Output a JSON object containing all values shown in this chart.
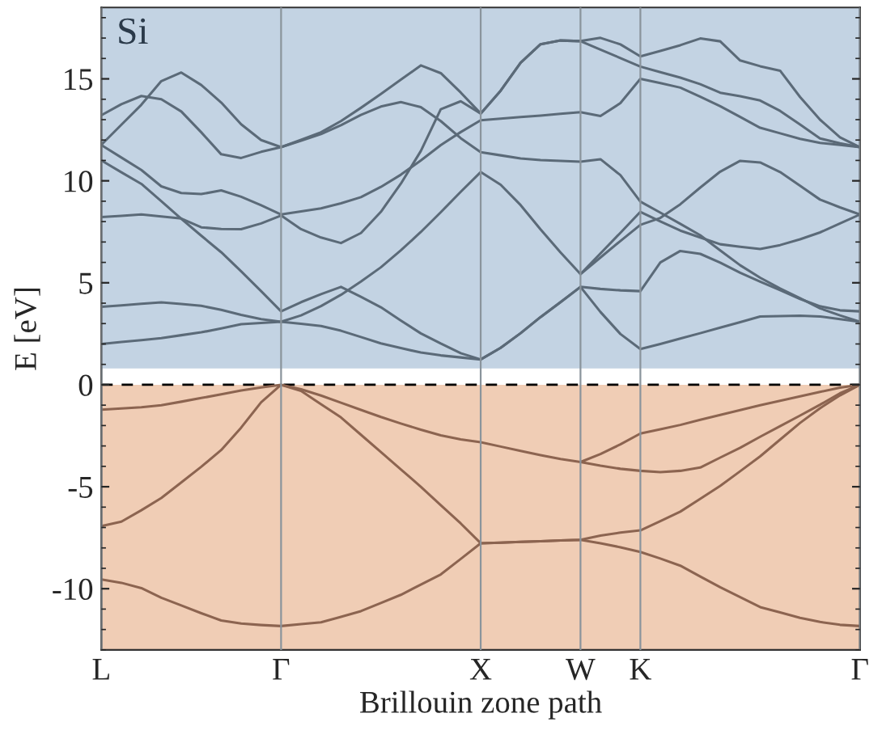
{
  "chart_data": {
    "type": "line",
    "xlabel": "Brillouin zone path",
    "ylabel": "E [eV]",
    "annotations": [
      "Si"
    ],
    "categories": [
      "L",
      null,
      null,
      null,
      null,
      null,
      null,
      null,
      null,
      "Γ",
      null,
      null,
      null,
      null,
      null,
      null,
      null,
      null,
      null,
      "X",
      null,
      null,
      null,
      null,
      "W",
      null,
      null,
      "K",
      null,
      null,
      null,
      null,
      null,
      null,
      null,
      null,
      null,
      null,
      "Γ"
    ],
    "ylim": [
      -13,
      18.5
    ],
    "yticks": [
      {
        "value": -10,
        "label": "-10"
      },
      {
        "value": -5,
        "label": "-5"
      },
      0,
      5,
      10,
      15
    ],
    "grid": "x",
    "legend": false,
    "marker": "none",
    "line_style": "solid",
    "bands": [
      {
        "axis": "y",
        "from": 0.8,
        "to": 18.5,
        "color": "#c3d3e3"
      },
      {
        "axis": "y",
        "from": -13,
        "to": 0,
        "color": "#f0cdb5"
      }
    ],
    "ref_lines": [
      {
        "axis": "y",
        "value": 0,
        "color": "#000000",
        "line_style": "dashed"
      }
    ],
    "series": [
      {
        "color": "#5b6a78",
        "values": [
          2.0,
          2.1,
          2.19,
          2.29,
          2.43,
          2.57,
          2.76,
          2.97,
          3.03,
          3.09,
          2.99,
          2.88,
          2.65,
          2.34,
          2.03,
          1.8,
          1.58,
          1.44,
          1.34,
          1.24,
          1.81,
          2.53,
          3.32,
          4.05,
          4.8,
          3.57,
          2.49,
          1.75,
          2.0,
          2.27,
          2.53,
          2.8,
          3.07,
          3.35,
          3.37,
          3.39,
          3.35,
          3.22,
          3.09
        ]
      },
      {
        "color": "#5b6a78",
        "values": [
          3.82,
          3.89,
          3.97,
          4.04,
          3.96,
          3.87,
          3.67,
          3.43,
          3.22,
          3.09,
          3.4,
          3.86,
          4.41,
          5.06,
          5.76,
          6.59,
          7.49,
          8.46,
          9.46,
          10.43,
          9.81,
          8.81,
          7.62,
          6.49,
          5.43,
          6.24,
          7.05,
          7.84,
          8.18,
          8.85,
          9.67,
          10.45,
          10.98,
          10.9,
          10.43,
          9.76,
          9.08,
          8.7,
          8.35
        ]
      },
      {
        "color": "#5b6a78",
        "values": [
          null,
          null,
          null,
          null,
          null,
          null,
          null,
          null,
          null,
          null,
          null,
          null,
          null,
          null,
          null,
          null,
          null,
          null,
          null,
          null,
          null,
          null,
          null,
          null,
          5.43,
          6.44,
          7.45,
          8.48,
          8.01,
          7.56,
          7.22,
          6.89,
          6.77,
          6.66,
          6.85,
          7.13,
          7.47,
          7.91,
          8.35
        ]
      },
      {
        "color": "#5b6a78",
        "values": [
          11.0,
          10.42,
          9.85,
          9.0,
          8.14,
          7.31,
          6.5,
          5.56,
          4.59,
          3.6,
          4.05,
          4.44,
          4.8,
          4.31,
          3.8,
          3.15,
          2.52,
          2.02,
          1.55,
          1.24,
          1.81,
          2.53,
          3.32,
          4.05,
          4.8,
          4.7,
          4.63,
          4.59,
          6.0,
          6.56,
          6.42,
          5.99,
          5.49,
          5.06,
          4.64,
          4.21,
          3.85,
          3.65,
          3.6
        ]
      },
      {
        "color": "#5b6a78",
        "values": [
          8.22,
          8.28,
          8.35,
          8.25,
          8.15,
          7.72,
          7.64,
          7.63,
          7.91,
          8.3,
          7.63,
          7.22,
          6.95,
          7.44,
          8.48,
          9.86,
          11.46,
          13.51,
          13.9,
          13.3,
          14.42,
          15.79,
          16.7,
          16.88,
          16.85,
          16.43,
          16.02,
          15.6,
          15.33,
          15.06,
          14.74,
          14.32,
          14.15,
          13.94,
          13.43,
          12.76,
          12.08,
          11.84,
          11.65
        ]
      },
      {
        "color": "#5b6a78",
        "values": [
          11.75,
          11.14,
          10.53,
          9.73,
          9.4,
          9.35,
          9.53,
          9.22,
          8.8,
          8.35,
          8.5,
          8.65,
          8.9,
          9.2,
          9.7,
          10.3,
          11.0,
          11.75,
          12.39,
          12.97,
          13.05,
          13.13,
          13.2,
          13.29,
          13.37,
          13.18,
          13.81,
          15.0,
          14.79,
          14.57,
          14.12,
          13.66,
          13.13,
          12.6,
          12.33,
          12.06,
          11.86,
          11.76,
          11.65
        ]
      },
      {
        "color": "#5b6a78",
        "values": [
          13.22,
          13.76,
          14.16,
          14.0,
          13.4,
          12.38,
          11.3,
          11.12,
          11.42,
          11.65,
          11.97,
          12.29,
          12.73,
          13.23,
          13.64,
          13.86,
          13.61,
          12.93,
          12.09,
          11.4,
          11.25,
          11.1,
          11.02,
          10.98,
          10.94,
          11.06,
          10.28,
          8.98,
          8.44,
          7.89,
          7.33,
          6.59,
          5.86,
          5.25,
          4.72,
          4.24,
          3.75,
          3.4,
          3.09
        ]
      },
      {
        "color": "#5b6a78",
        "values": [
          11.77,
          12.75,
          13.73,
          14.89,
          15.31,
          14.7,
          13.84,
          12.77,
          12.0,
          11.65,
          12.01,
          12.38,
          12.93,
          13.58,
          14.26,
          14.96,
          15.66,
          15.28,
          14.33,
          13.3,
          14.42,
          15.79,
          16.7,
          16.88,
          16.85,
          17.01,
          16.69,
          16.1,
          16.37,
          16.65,
          16.98,
          16.84,
          15.9,
          15.62,
          15.4,
          14.11,
          13.0,
          12.13,
          11.65
        ]
      },
      {
        "color": "#8c6450",
        "values": [
          -9.55,
          -9.71,
          -9.97,
          -10.44,
          -10.82,
          -11.2,
          -11.56,
          -11.71,
          -11.78,
          -11.83,
          -11.74,
          -11.65,
          -11.38,
          -11.1,
          -10.7,
          -10.3,
          -9.8,
          -9.3,
          -8.54,
          -7.77,
          -7.74,
          -7.7,
          -7.67,
          -7.63,
          -7.6,
          -7.77,
          -7.97,
          -8.2,
          -8.52,
          -8.87,
          -9.4,
          -9.93,
          -10.41,
          -10.9,
          -11.16,
          -11.43,
          -11.63,
          -11.77,
          -11.83
        ]
      },
      {
        "color": "#8c6450",
        "values": [
          -6.93,
          -6.71,
          -6.15,
          -5.55,
          -4.79,
          -4.02,
          -3.2,
          -2.1,
          -0.86,
          0,
          -0.3,
          -0.95,
          -1.6,
          -2.45,
          -3.3,
          -4.15,
          -5.0,
          -5.9,
          -6.8,
          -7.77,
          -7.74,
          -7.7,
          -7.67,
          -7.63,
          -7.6,
          -7.4,
          -7.25,
          -7.14,
          -6.69,
          -6.22,
          -5.59,
          -4.96,
          -4.24,
          -3.51,
          -2.69,
          -1.87,
          -1.15,
          -0.52,
          0
        ]
      },
      {
        "color": "#8c6450",
        "values": [
          -1.22,
          -1.16,
          -1.1,
          -1.0,
          -0.83,
          -0.65,
          -0.47,
          -0.28,
          -0.13,
          0,
          -0.22,
          -0.53,
          -0.88,
          -1.23,
          -1.58,
          -1.9,
          -2.2,
          -2.48,
          -2.68,
          -2.82,
          -3.03,
          -3.24,
          -3.45,
          -3.64,
          -3.79,
          -3.97,
          -4.12,
          -4.22,
          -4.28,
          -4.22,
          -4.06,
          -3.57,
          -3.09,
          -2.55,
          -2.03,
          -1.51,
          -0.98,
          -0.42,
          0
        ]
      },
      {
        "color": "#8c6450",
        "values": [
          null,
          null,
          null,
          null,
          null,
          null,
          null,
          null,
          null,
          null,
          null,
          null,
          null,
          null,
          null,
          null,
          null,
          null,
          null,
          null,
          null,
          null,
          null,
          null,
          -3.79,
          -3.4,
          -2.92,
          -2.39,
          -2.18,
          -1.97,
          -1.72,
          -1.48,
          -1.24,
          -1.0,
          -0.79,
          -0.57,
          -0.35,
          -0.14,
          0
        ]
      }
    ]
  }
}
